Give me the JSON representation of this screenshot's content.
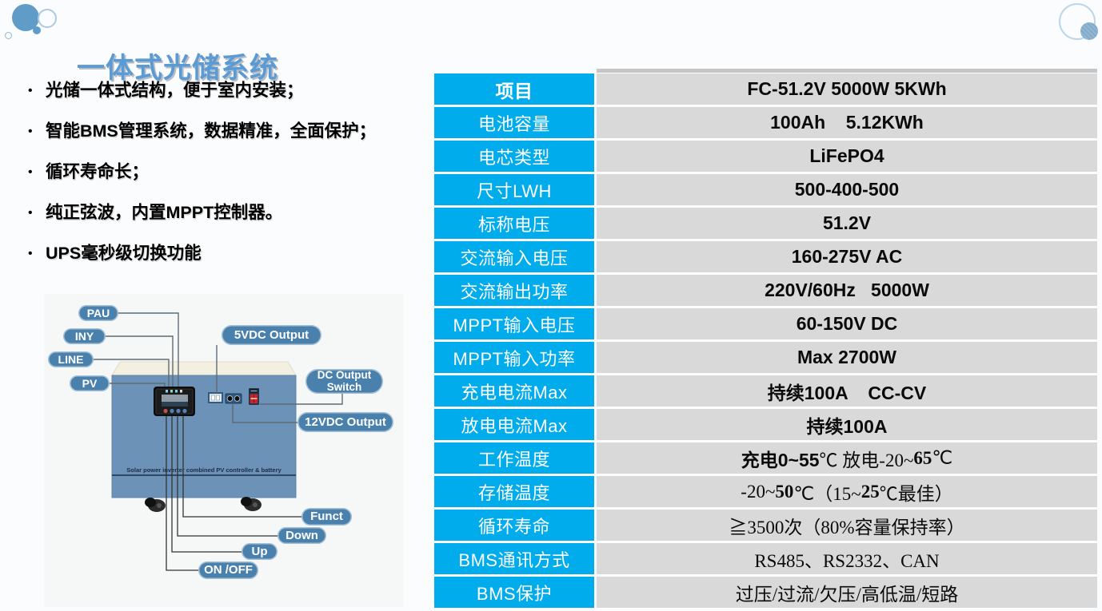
{
  "page": {
    "title": "一体式光储系统"
  },
  "bullets": [
    "光储一体式结构，便于室内安装；",
    "智能BMS管理系统，数据精准，全面保护；",
    "循环寿命长；",
    "纯正弦波，内置MPPT控制器。",
    "UPS毫秒级切换功能"
  ],
  "diagram": {
    "labels": {
      "pau": "PAU",
      "iny": "INY",
      "line": "LINE",
      "pv": "PV",
      "vdc5": "5VDC Output",
      "dc_switch_line1": "DC Output",
      "dc_switch_line2": "Switch",
      "vdc12": "12VDC Output",
      "funct": "Funct",
      "down": "Down",
      "up": "Up",
      "onoff": "ON /OFF"
    },
    "device_text": "Solar power inverter combined PV controller & battery"
  },
  "table": {
    "rows": [
      {
        "label": "项目",
        "segs": [
          {
            "t": "FC-51.2V 5000W 5KWh",
            "f": "b"
          }
        ]
      },
      {
        "label": "电池容量",
        "segs": [
          {
            "t": "100Ah    5.12KWh",
            "f": "b"
          }
        ]
      },
      {
        "label": "电芯类型",
        "segs": [
          {
            "t": "LiFePO4",
            "f": "b"
          }
        ]
      },
      {
        "label": "尺寸LWH",
        "segs": [
          {
            "t": "500-400-500",
            "f": "b"
          }
        ]
      },
      {
        "label": "标称电压",
        "segs": [
          {
            "t": "51.2V",
            "f": "b"
          }
        ]
      },
      {
        "label": "交流输入电压",
        "segs": [
          {
            "t": "160-275V AC",
            "f": "b"
          }
        ]
      },
      {
        "label": "交流输出功率",
        "segs": [
          {
            "t": "220V/60Hz   5000W",
            "f": "b"
          }
        ]
      },
      {
        "label": "MPPT输入电压",
        "segs": [
          {
            "t": "60-150V DC",
            "f": "b"
          }
        ]
      },
      {
        "label": "MPPT输入功率",
        "segs": [
          {
            "t": "Max 2700W",
            "f": "b"
          }
        ]
      },
      {
        "label": "充电电流Max",
        "segs": [
          {
            "t": "持续100A    CC-CV",
            "f": "b"
          }
        ]
      },
      {
        "label": "放电电流Max",
        "segs": [
          {
            "t": "持续100A",
            "f": "b"
          }
        ]
      },
      {
        "label": "工作温度",
        "segs": [
          {
            "t": "充电0~55",
            "f": "b"
          },
          {
            "t": "℃ 放电-20~",
            "f": "s"
          },
          {
            "t": "65",
            "f": "sb"
          },
          {
            "t": "℃",
            "f": "s"
          }
        ]
      },
      {
        "label": "存储温度",
        "segs": [
          {
            "t": "-20~",
            "f": "s"
          },
          {
            "t": "50",
            "f": "sb"
          },
          {
            "t": "℃（15~",
            "f": "s"
          },
          {
            "t": "25",
            "f": "sb"
          },
          {
            "t": "℃最佳）",
            "f": "s"
          }
        ]
      },
      {
        "label": "循环寿命",
        "segs": [
          {
            "t": "≧3500次（80%容量保持率）",
            "f": "s"
          }
        ]
      },
      {
        "label": "BMS通讯方式",
        "segs": [
          {
            "t": "RS485、RS2332、CAN",
            "f": "s"
          }
        ]
      },
      {
        "label": "BMS保护",
        "segs": [
          {
            "t": "过压/过流/欠压/高低温/短路",
            "f": "s"
          }
        ]
      }
    ]
  },
  "colors": {
    "accent_cyan": "#00ACEC",
    "value_gray": "#D9D9D9",
    "title_blue": "#5B9BD5",
    "pill_blue": "#4A80AC",
    "device_blue": "#6D92B8"
  }
}
